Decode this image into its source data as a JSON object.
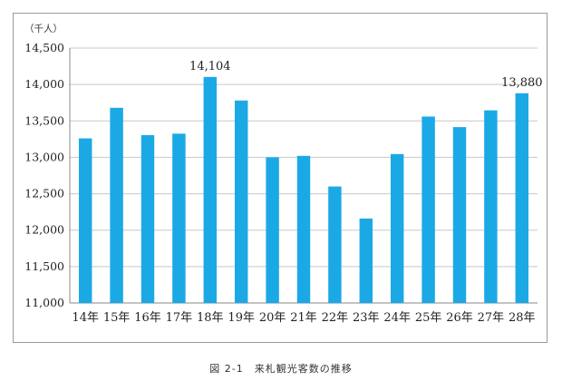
{
  "caption": "図 2-1　来札観光客数の推移",
  "chart_data": {
    "type": "bar",
    "unit_label": "（千人）",
    "categories": [
      "14年",
      "15年",
      "16年",
      "17年",
      "18年",
      "19年",
      "20年",
      "21年",
      "22年",
      "23年",
      "24年",
      "25年",
      "26年",
      "27年",
      "28年"
    ],
    "values": [
      13260,
      13680,
      13305,
      13325,
      14104,
      13780,
      13000,
      13020,
      12600,
      12160,
      13045,
      13560,
      13415,
      13645,
      13880
    ],
    "ylim": [
      11000,
      14500
    ],
    "yticks": [
      11000,
      11500,
      12000,
      12500,
      13000,
      13500,
      14000,
      14500
    ],
    "ytick_labels": [
      "11,000",
      "11,500",
      "12,000",
      "12,500",
      "13,000",
      "13,500",
      "14,000",
      "14,500"
    ],
    "data_labels": [
      {
        "category": "18年",
        "text": "14,104"
      },
      {
        "category": "28年",
        "text": "13,880"
      }
    ],
    "grid": true,
    "bar_color": "#1ba9e6",
    "grid_color": "#c8c8c8",
    "axis_color": "#888888"
  }
}
